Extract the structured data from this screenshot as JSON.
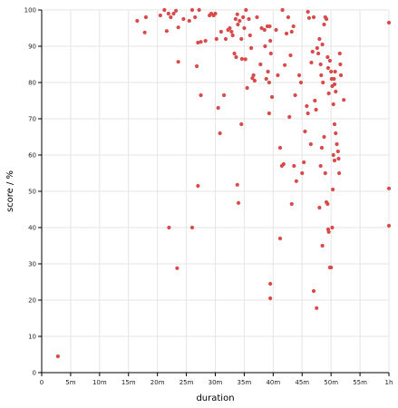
{
  "chart_data": {
    "type": "scatter",
    "xlabel": "duration",
    "ylabel": "score / %",
    "x_unit": "minutes",
    "xlim": [
      0,
      60
    ],
    "ylim": [
      0,
      100
    ],
    "grid": true,
    "point_color": "#d94a4a",
    "x_ticks": [
      {
        "value": 0,
        "label": "0"
      },
      {
        "value": 5,
        "label": "5m"
      },
      {
        "value": 10,
        "label": "10m"
      },
      {
        "value": 15,
        "label": "15m"
      },
      {
        "value": 20,
        "label": "20m"
      },
      {
        "value": 25,
        "label": "25m"
      },
      {
        "value": 30,
        "label": "30m"
      },
      {
        "value": 35,
        "label": "35m"
      },
      {
        "value": 40,
        "label": "40m"
      },
      {
        "value": 45,
        "label": "45m"
      },
      {
        "value": 50,
        "label": "50m"
      },
      {
        "value": 55,
        "label": "55m"
      },
      {
        "value": 60,
        "label": "1h"
      }
    ],
    "y_ticks": [
      {
        "value": 0,
        "label": "0"
      },
      {
        "value": 10,
        "label": "10"
      },
      {
        "value": 20,
        "label": "20"
      },
      {
        "value": 30,
        "label": "30"
      },
      {
        "value": 40,
        "label": "40"
      },
      {
        "value": 50,
        "label": "50"
      },
      {
        "value": 60,
        "label": "60"
      },
      {
        "value": 70,
        "label": "70"
      },
      {
        "value": 80,
        "label": "80"
      },
      {
        "value": 90,
        "label": "90"
      },
      {
        "value": 100,
        "label": "100"
      }
    ],
    "points": [
      [
        2.8,
        4.5
      ],
      [
        16.5,
        97
      ],
      [
        17.8,
        93.8
      ],
      [
        18,
        98
      ],
      [
        20.5,
        98.5
      ],
      [
        21.2,
        100
      ],
      [
        21.6,
        94.2
      ],
      [
        21.9,
        99
      ],
      [
        22.3,
        98
      ],
      [
        22.8,
        99
      ],
      [
        23.2,
        99.8
      ],
      [
        23.6,
        95.2
      ],
      [
        24.5,
        97.5
      ],
      [
        22,
        40
      ],
      [
        23.4,
        28.8
      ],
      [
        23.6,
        85.7
      ],
      [
        25.5,
        97
      ],
      [
        26,
        100
      ],
      [
        26.5,
        98
      ],
      [
        26.8,
        84.5
      ],
      [
        27,
        91
      ],
      [
        27.2,
        100
      ],
      [
        27.5,
        91.2
      ],
      [
        28.3,
        91.5
      ],
      [
        29,
        98.5
      ],
      [
        29.3,
        99
      ],
      [
        29.7,
        98.5
      ],
      [
        30,
        99
      ],
      [
        30.2,
        92
      ],
      [
        26,
        40
      ],
      [
        27,
        51.5
      ],
      [
        27.5,
        76.5
      ],
      [
        30.5,
        73
      ],
      [
        30.8,
        66
      ],
      [
        31,
        94
      ],
      [
        31.5,
        76.5
      ],
      [
        31.8,
        92
      ],
      [
        32.2,
        94.5
      ],
      [
        32.5,
        95
      ],
      [
        32.8,
        94
      ],
      [
        33,
        93
      ],
      [
        33.3,
        88
      ],
      [
        33.5,
        97.5
      ],
      [
        33.6,
        87
      ],
      [
        33.8,
        98.8
      ],
      [
        33.9,
        96
      ],
      [
        34.2,
        97
      ],
      [
        34.5,
        92
      ],
      [
        34.6,
        86.5
      ],
      [
        34.8,
        98
      ],
      [
        35,
        95
      ],
      [
        35.2,
        86.4
      ],
      [
        35.3,
        100
      ],
      [
        35.5,
        78.5
      ],
      [
        35.8,
        97.5
      ],
      [
        36,
        93
      ],
      [
        36.2,
        89.5
      ],
      [
        36.4,
        81.2
      ],
      [
        36.6,
        82
      ],
      [
        36.8,
        80.5
      ],
      [
        37.2,
        98
      ],
      [
        37.8,
        85
      ],
      [
        38,
        95
      ],
      [
        38.5,
        94.5
      ],
      [
        38.6,
        90
      ],
      [
        38.8,
        81
      ],
      [
        39,
        95.5
      ],
      [
        39.1,
        83
      ],
      [
        39.3,
        80
      ],
      [
        39.4,
        95.5
      ],
      [
        39.5,
        91.5
      ],
      [
        39.6,
        88
      ],
      [
        39.8,
        76
      ],
      [
        33.8,
        51.8
      ],
      [
        34,
        46.8
      ],
      [
        34.5,
        68.5
      ],
      [
        39.3,
        71.5
      ],
      [
        39.5,
        24.5
      ],
      [
        39.5,
        20.5
      ],
      [
        40.5,
        94.5
      ],
      [
        40.8,
        82
      ],
      [
        41.2,
        37
      ],
      [
        41.2,
        62
      ],
      [
        41.5,
        57
      ],
      [
        41.6,
        100
      ],
      [
        41.8,
        57.5
      ],
      [
        42,
        84.8
      ],
      [
        42.3,
        93.5
      ],
      [
        42.6,
        98
      ],
      [
        42.8,
        70.5
      ],
      [
        43,
        87.5
      ],
      [
        43.2,
        94
      ],
      [
        43.5,
        95.5
      ],
      [
        43.8,
        76.5
      ],
      [
        43.2,
        46.5
      ],
      [
        43.6,
        57
      ],
      [
        44,
        52.8
      ],
      [
        44.5,
        82
      ],
      [
        44.8,
        80
      ],
      [
        45,
        55
      ],
      [
        45.3,
        58
      ],
      [
        45.5,
        66.5
      ],
      [
        45.8,
        73.5
      ],
      [
        46,
        71.5
      ],
      [
        46,
        99.5
      ],
      [
        46.2,
        97.8
      ],
      [
        46.5,
        63
      ],
      [
        46.6,
        85.5
      ],
      [
        46.8,
        88.5
      ],
      [
        47,
        98
      ],
      [
        47.2,
        75
      ],
      [
        47.4,
        72.5
      ],
      [
        47.6,
        89.5
      ],
      [
        47.8,
        88
      ],
      [
        48,
        92
      ],
      [
        48.2,
        85
      ],
      [
        48.3,
        82
      ],
      [
        48.5,
        90.5
      ],
      [
        48.6,
        80
      ],
      [
        48.8,
        96
      ],
      [
        49,
        98
      ],
      [
        49.2,
        97.5
      ],
      [
        49.4,
        87
      ],
      [
        49.5,
        84
      ],
      [
        49.6,
        77
      ],
      [
        49.8,
        86
      ],
      [
        50,
        83
      ],
      [
        50.1,
        81
      ],
      [
        50.2,
        79
      ],
      [
        50.4,
        74
      ],
      [
        50.6,
        68.5
      ],
      [
        50.8,
        66
      ],
      [
        51,
        63
      ],
      [
        51.2,
        61
      ],
      [
        51.3,
        59
      ],
      [
        51.4,
        55
      ],
      [
        51.5,
        88
      ],
      [
        51.6,
        85
      ],
      [
        51.7,
        82
      ],
      [
        47,
        22.5
      ],
      [
        47.5,
        17.8
      ],
      [
        48,
        45.5
      ],
      [
        48.5,
        35
      ],
      [
        49.2,
        47
      ],
      [
        49.4,
        46.5
      ],
      [
        49.5,
        39.5
      ],
      [
        49.6,
        38.8
      ],
      [
        49.8,
        29
      ],
      [
        50,
        29
      ],
      [
        50.2,
        40
      ],
      [
        50.3,
        50.5
      ],
      [
        50.4,
        60
      ],
      [
        50.6,
        58.5
      ],
      [
        49,
        55
      ],
      [
        48.2,
        57
      ],
      [
        48.4,
        62
      ],
      [
        48.8,
        65
      ],
      [
        50.5,
        81
      ],
      [
        50.6,
        79.5
      ],
      [
        50.7,
        83
      ],
      [
        50.8,
        77.5
      ],
      [
        52.2,
        75.2
      ],
      [
        60,
        96.5
      ],
      [
        60,
        50.8
      ],
      [
        60,
        40.5
      ]
    ]
  }
}
